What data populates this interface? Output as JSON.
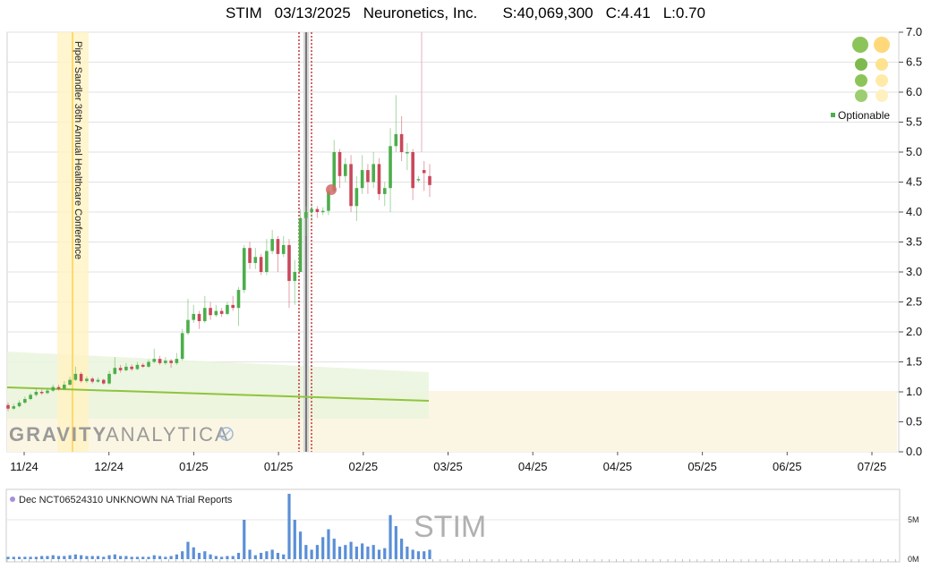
{
  "header": {
    "ticker": "STIM",
    "date": "03/13/2025",
    "company": "Neuronetics, Inc.",
    "shares": "S:40,069,300",
    "close": "C:4.41",
    "low": "L:0.70"
  },
  "event_label": "Piper Sandler 36th Annual Healthcare Conference",
  "watermark": {
    "brand_bold": "GRAVITY",
    "brand_light": "ANALYTICA"
  },
  "indicator": {
    "optionable_label": "Optionable",
    "color": "#2e9a2e"
  },
  "volume_panel": {
    "legend_label": "Dec NCT06524310 UNKNOWN NA Trial Reports",
    "ticker_watermark": "STIM",
    "y_ticks": [
      "5M",
      "0M"
    ],
    "bar_color": "#5b8fd6",
    "legend_dot_color": "#a58fd6"
  },
  "colors": {
    "up": "#4cae4c",
    "down": "#c9485b",
    "trend": "#8fc43e",
    "highlight": "#fff3c2",
    "event_line": "#ffd24d"
  },
  "chart_data": {
    "type": "candlestick",
    "y_ticks": [
      "0.0",
      "0.5",
      "1.0",
      "1.5",
      "2.0",
      "2.5",
      "3.0",
      "3.5",
      "4.0",
      "4.5",
      "5.0",
      "5.5",
      "6.0",
      "6.5",
      "7.0"
    ],
    "ylim": [
      0,
      7
    ],
    "x_ticks": [
      "11/24",
      "12/24",
      "01/25",
      "01/25",
      "02/25",
      "03/25",
      "04/25",
      "04/25",
      "05/25",
      "06/25",
      "07/25"
    ],
    "candles": [
      {
        "o": 0.78,
        "c": 0.72,
        "h": 0.82,
        "l": 0.68
      },
      {
        "o": 0.72,
        "c": 0.76,
        "h": 0.8,
        "l": 0.7
      },
      {
        "o": 0.76,
        "c": 0.82,
        "h": 0.86,
        "l": 0.74
      },
      {
        "o": 0.82,
        "c": 0.88,
        "h": 0.92,
        "l": 0.8
      },
      {
        "o": 0.88,
        "c": 0.95,
        "h": 0.98,
        "l": 0.86
      },
      {
        "o": 0.95,
        "c": 1.0,
        "h": 1.05,
        "l": 0.92
      },
      {
        "o": 1.0,
        "c": 0.98,
        "h": 1.04,
        "l": 0.95
      },
      {
        "o": 0.98,
        "c": 1.02,
        "h": 1.06,
        "l": 0.96
      },
      {
        "o": 1.02,
        "c": 1.08,
        "h": 1.12,
        "l": 1.0
      },
      {
        "o": 1.08,
        "c": 1.05,
        "h": 1.12,
        "l": 1.02
      },
      {
        "o": 1.05,
        "c": 1.12,
        "h": 1.18,
        "l": 1.03
      },
      {
        "o": 1.12,
        "c": 1.2,
        "h": 1.25,
        "l": 1.1
      },
      {
        "o": 1.2,
        "c": 1.3,
        "h": 1.42,
        "l": 1.18
      },
      {
        "o": 1.3,
        "c": 1.18,
        "h": 1.33,
        "l": 1.15
      },
      {
        "o": 1.18,
        "c": 1.22,
        "h": 1.26,
        "l": 1.15
      },
      {
        "o": 1.22,
        "c": 1.17,
        "h": 1.25,
        "l": 1.14
      },
      {
        "o": 1.17,
        "c": 1.2,
        "h": 1.24,
        "l": 1.15
      },
      {
        "o": 1.2,
        "c": 1.14,
        "h": 1.22,
        "l": 1.12
      },
      {
        "o": 1.14,
        "c": 1.3,
        "h": 1.35,
        "l": 1.12
      },
      {
        "o": 1.3,
        "c": 1.4,
        "h": 1.58,
        "l": 1.28
      },
      {
        "o": 1.4,
        "c": 1.36,
        "h": 1.45,
        "l": 1.32
      },
      {
        "o": 1.36,
        "c": 1.42,
        "h": 1.48,
        "l": 1.34
      },
      {
        "o": 1.42,
        "c": 1.38,
        "h": 1.46,
        "l": 1.35
      },
      {
        "o": 1.38,
        "c": 1.45,
        "h": 1.5,
        "l": 1.36
      },
      {
        "o": 1.45,
        "c": 1.42,
        "h": 1.48,
        "l": 1.4
      },
      {
        "o": 1.42,
        "c": 1.5,
        "h": 1.54,
        "l": 1.4
      },
      {
        "o": 1.5,
        "c": 1.55,
        "h": 1.72,
        "l": 1.48
      },
      {
        "o": 1.55,
        "c": 1.48,
        "h": 1.6,
        "l": 1.45
      },
      {
        "o": 1.48,
        "c": 1.52,
        "h": 1.58,
        "l": 1.45
      },
      {
        "o": 1.52,
        "c": 1.48,
        "h": 1.55,
        "l": 1.4
      },
      {
        "o": 1.48,
        "c": 1.55,
        "h": 1.65,
        "l": 1.45
      },
      {
        "o": 1.55,
        "c": 1.98,
        "h": 2.05,
        "l": 1.52
      },
      {
        "o": 1.98,
        "c": 2.2,
        "h": 2.55,
        "l": 1.95
      },
      {
        "o": 2.2,
        "c": 2.3,
        "h": 2.45,
        "l": 2.15
      },
      {
        "o": 2.3,
        "c": 2.18,
        "h": 2.35,
        "l": 2.05
      },
      {
        "o": 2.18,
        "c": 2.4,
        "h": 2.6,
        "l": 2.15
      },
      {
        "o": 2.4,
        "c": 2.28,
        "h": 2.5,
        "l": 2.2
      },
      {
        "o": 2.28,
        "c": 2.35,
        "h": 2.45,
        "l": 2.25
      },
      {
        "o": 2.35,
        "c": 2.3,
        "h": 2.4,
        "l": 2.25
      },
      {
        "o": 2.3,
        "c": 2.45,
        "h": 2.5,
        "l": 2.28
      },
      {
        "o": 2.45,
        "c": 2.4,
        "h": 2.6,
        "l": 2.35
      },
      {
        "o": 2.4,
        "c": 2.7,
        "h": 2.75,
        "l": 2.1
      },
      {
        "o": 2.7,
        "c": 3.4,
        "h": 3.45,
        "l": 2.65
      },
      {
        "o": 3.4,
        "c": 3.15,
        "h": 3.5,
        "l": 3.05
      },
      {
        "o": 3.15,
        "c": 3.25,
        "h": 3.4,
        "l": 3.05
      },
      {
        "o": 3.25,
        "c": 3.0,
        "h": 3.3,
        "l": 2.95
      },
      {
        "o": 3.0,
        "c": 3.35,
        "h": 3.55,
        "l": 2.95
      },
      {
        "o": 3.35,
        "c": 3.55,
        "h": 3.7,
        "l": 3.3
      },
      {
        "o": 3.55,
        "c": 3.3,
        "h": 3.6,
        "l": 3.0
      },
      {
        "o": 3.3,
        "c": 3.45,
        "h": 3.6,
        "l": 3.25
      },
      {
        "o": 3.45,
        "c": 2.85,
        "h": 3.55,
        "l": 2.4
      },
      {
        "o": 2.85,
        "c": 3.0,
        "h": 3.2,
        "l": 2.45
      },
      {
        "o": 3.0,
        "c": 3.9,
        "h": 4.05,
        "l": 3.0
      },
      {
        "o": 3.9,
        "c": 4.0,
        "h": 4.1,
        "l": 3.6
      },
      {
        "o": 4.0,
        "c": 4.05,
        "h": 4.15,
        "l": 3.85
      },
      {
        "o": 4.05,
        "c": 4.0,
        "h": 4.1,
        "l": 3.9
      },
      {
        "o": 4.0,
        "c": 4.02,
        "h": 4.08,
        "l": 3.95
      },
      {
        "o": 4.02,
        "c": 4.35,
        "h": 4.45,
        "l": 3.95
      },
      {
        "o": 4.35,
        "c": 5.0,
        "h": 5.2,
        "l": 4.3
      },
      {
        "o": 5.0,
        "c": 4.6,
        "h": 5.05,
        "l": 4.4
      },
      {
        "o": 4.6,
        "c": 4.8,
        "h": 4.9,
        "l": 4.5
      },
      {
        "o": 4.8,
        "c": 4.1,
        "h": 4.95,
        "l": 4.0
      },
      {
        "o": 4.1,
        "c": 4.4,
        "h": 4.6,
        "l": 3.85
      },
      {
        "o": 4.4,
        "c": 4.7,
        "h": 4.95,
        "l": 4.3
      },
      {
        "o": 4.7,
        "c": 4.5,
        "h": 4.8,
        "l": 4.3
      },
      {
        "o": 4.5,
        "c": 4.8,
        "h": 5.0,
        "l": 4.4
      },
      {
        "o": 4.8,
        "c": 4.3,
        "h": 4.9,
        "l": 4.2
      },
      {
        "o": 4.3,
        "c": 4.4,
        "h": 4.5,
        "l": 4.1
      },
      {
        "o": 4.4,
        "c": 5.1,
        "h": 5.4,
        "l": 4.0
      },
      {
        "o": 5.1,
        "c": 5.3,
        "h": 5.95,
        "l": 5.0
      },
      {
        "o": 5.3,
        "c": 5.0,
        "h": 5.6,
        "l": 4.85
      },
      {
        "o": 5.0,
        "c": 5.0,
        "h": 5.15,
        "l": 4.7
      },
      {
        "o": 5.0,
        "c": 4.4,
        "h": 5.05,
        "l": 4.2
      },
      {
        "o": 4.55,
        "c": 4.55,
        "h": 4.6,
        "l": 4.5
      },
      {
        "o": 4.7,
        "c": 4.65,
        "h": 4.85,
        "l": 4.35
      },
      {
        "o": 4.6,
        "c": 4.45,
        "h": 4.8,
        "l": 4.25
      }
    ],
    "volume_millions": [
      0.3,
      0.3,
      0.3,
      0.3,
      0.3,
      0.3,
      0.4,
      0.4,
      0.5,
      0.4,
      0.4,
      0.5,
      0.6,
      0.5,
      0.4,
      0.4,
      0.4,
      0.3,
      0.5,
      0.6,
      0.4,
      0.4,
      0.3,
      0.3,
      0.3,
      0.3,
      0.5,
      0.4,
      0.3,
      0.4,
      0.6,
      1.0,
      2.2,
      1.5,
      0.8,
      1.0,
      0.6,
      0.4,
      0.3,
      0.4,
      0.4,
      0.8,
      5.0,
      1.2,
      0.5,
      0.8,
      1.0,
      1.2,
      0.8,
      0.6,
      8.3,
      5.0,
      3.5,
      1.8,
      1.2,
      1.8,
      2.8,
      3.8,
      2.6,
      1.6,
      1.8,
      2.2,
      1.6,
      2.0,
      1.6,
      1.8,
      1.2,
      1.4,
      5.6,
      4.2,
      2.6,
      1.6,
      1.2,
      1.0,
      1.0,
      1.2
    ]
  }
}
